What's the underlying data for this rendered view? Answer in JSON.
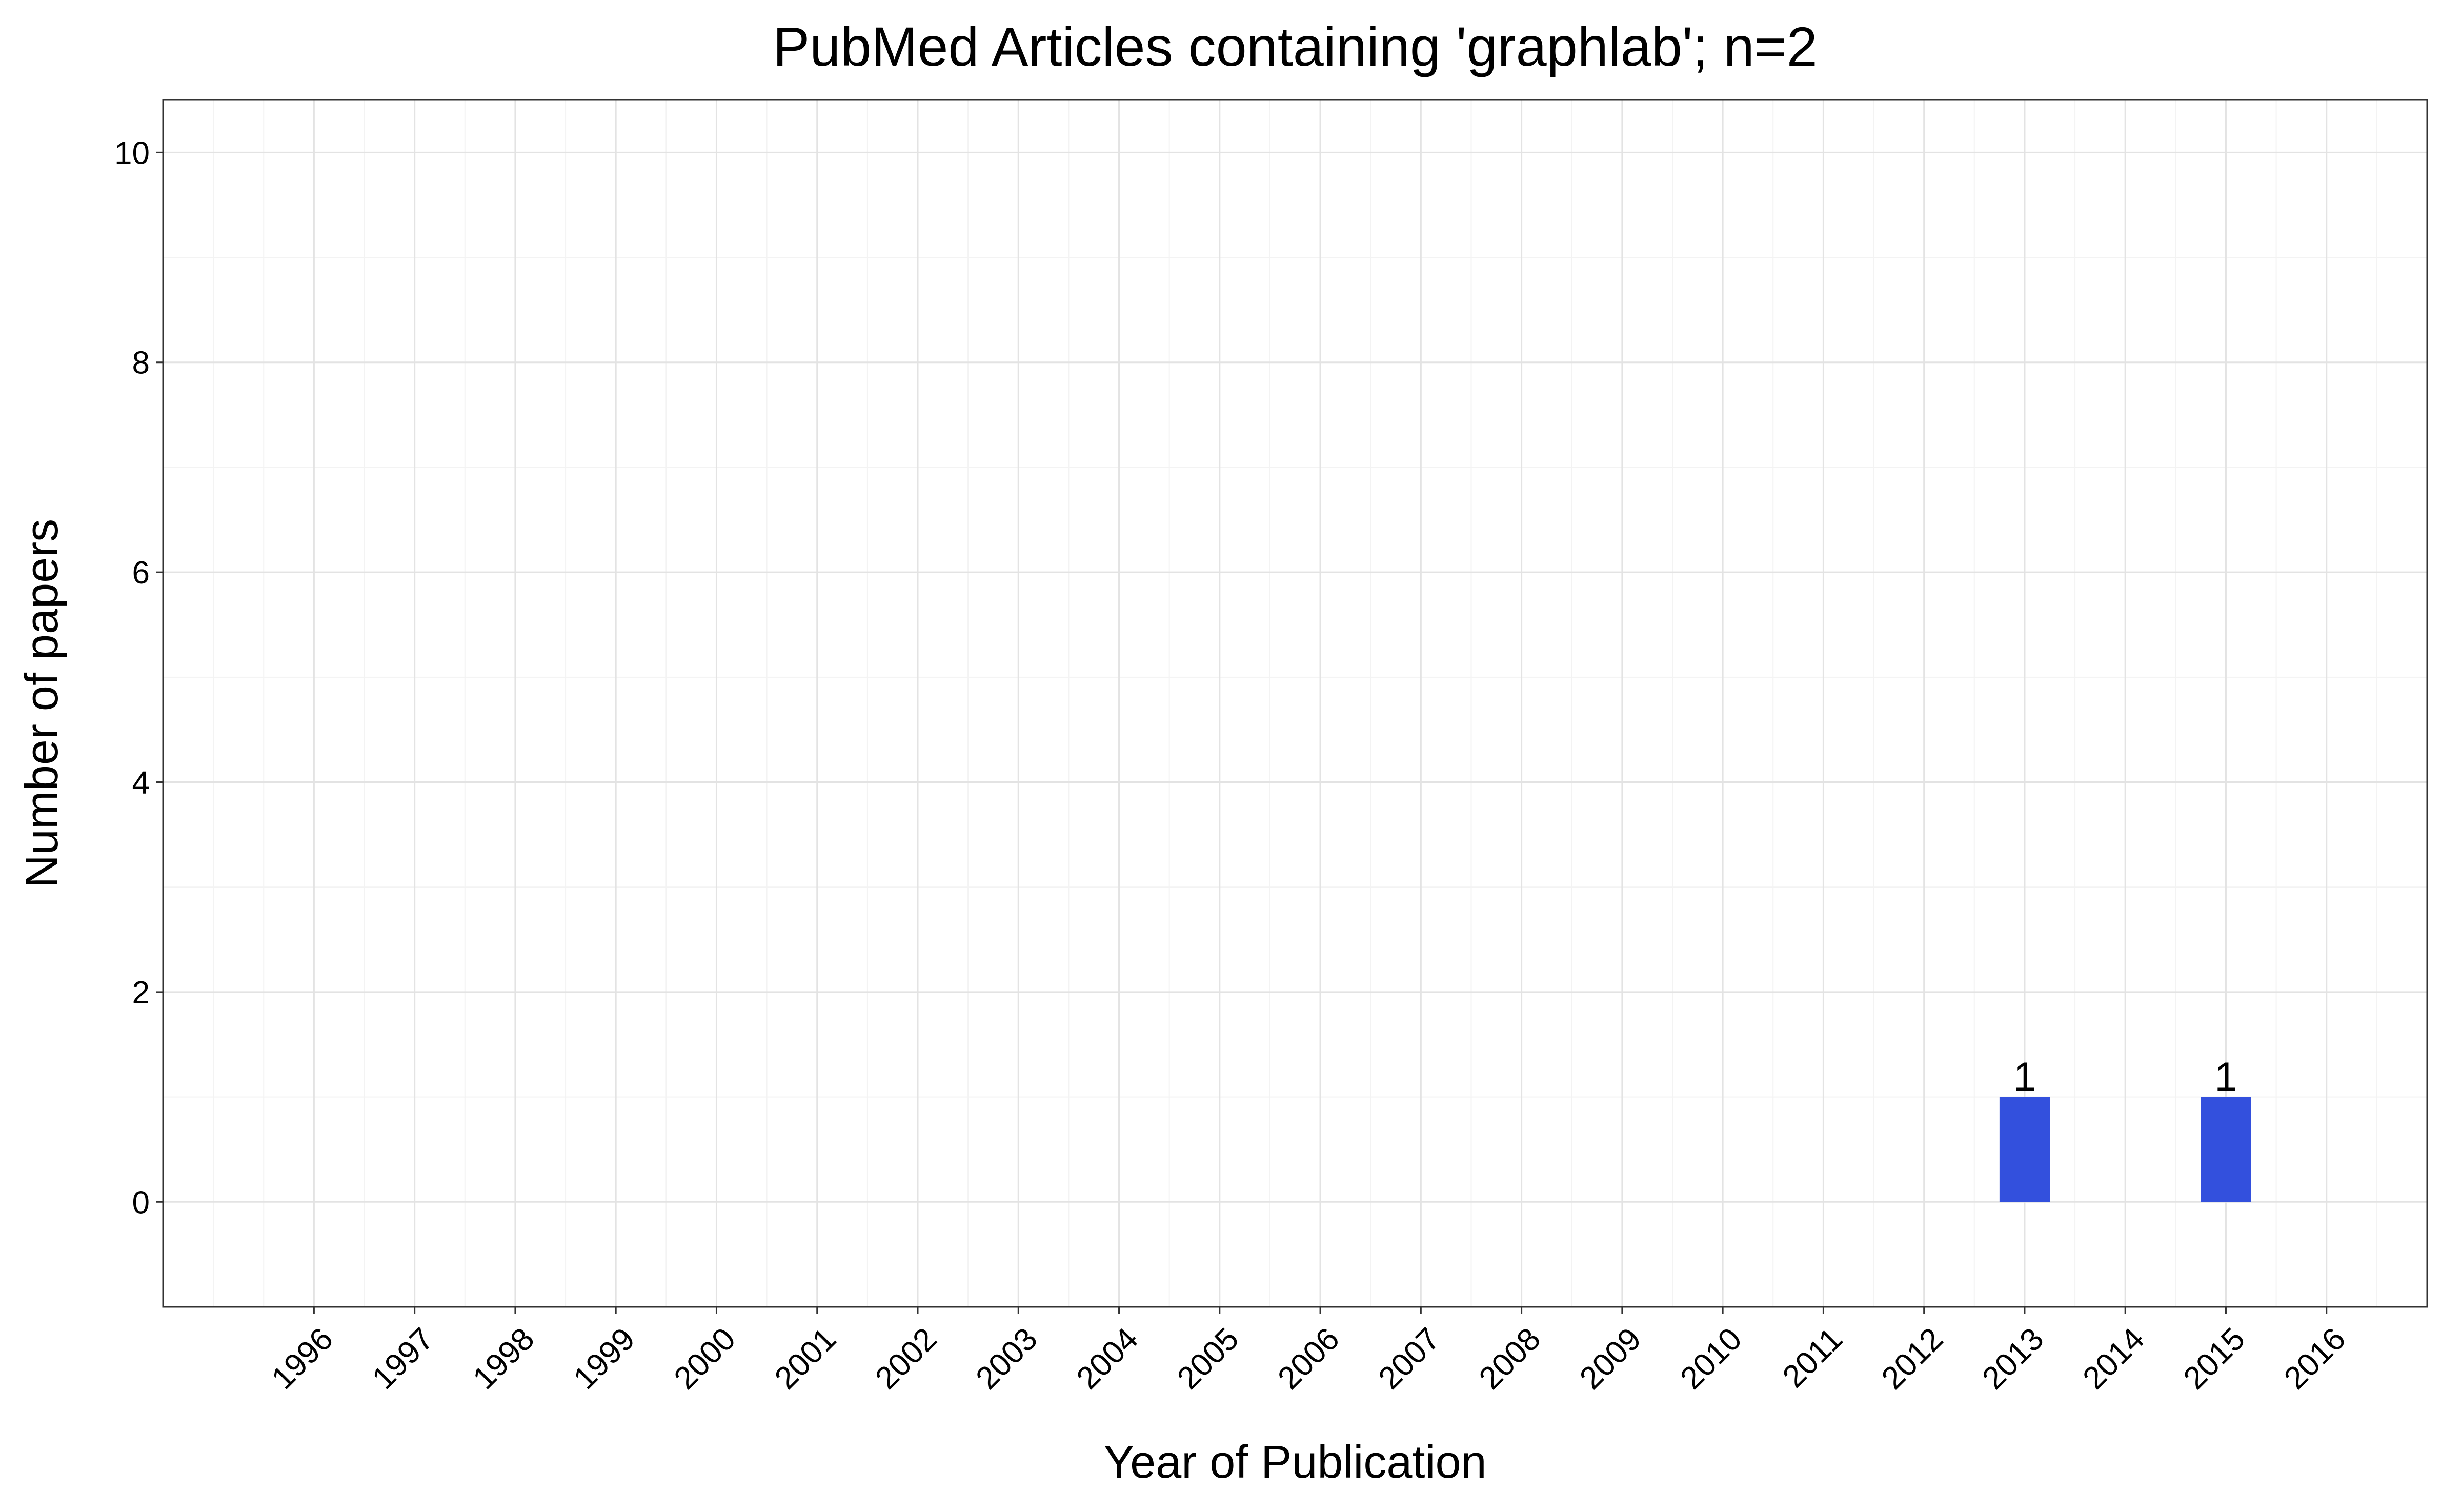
{
  "chart_data": {
    "type": "bar",
    "title": "PubMed Articles containing 'graphlab'; n=2",
    "xlabel": "Year of Publication",
    "ylabel": "Number of papers",
    "categories": [
      "1996",
      "1997",
      "1998",
      "1999",
      "2000",
      "2001",
      "2002",
      "2003",
      "2004",
      "2005",
      "2006",
      "2007",
      "2008",
      "2009",
      "2010",
      "2011",
      "2012",
      "2013",
      "2014",
      "2015",
      "2016"
    ],
    "values": [
      0,
      0,
      0,
      0,
      0,
      0,
      0,
      0,
      0,
      0,
      0,
      0,
      0,
      0,
      0,
      0,
      0,
      1,
      0,
      1,
      0
    ],
    "bar_labels": [
      {
        "category": "2013",
        "text": "1"
      },
      {
        "category": "2015",
        "text": "1"
      }
    ],
    "x_range": [
      1994.5,
      2017.0
    ],
    "ylim": [
      -1,
      10.5
    ],
    "yticks": [
      0,
      2,
      4,
      6,
      8,
      10
    ],
    "ytick_labels": [
      "0",
      "2",
      "4",
      "6",
      "8",
      "10"
    ],
    "grid": true,
    "legend": "none",
    "bar_color": "#3350dd"
  }
}
